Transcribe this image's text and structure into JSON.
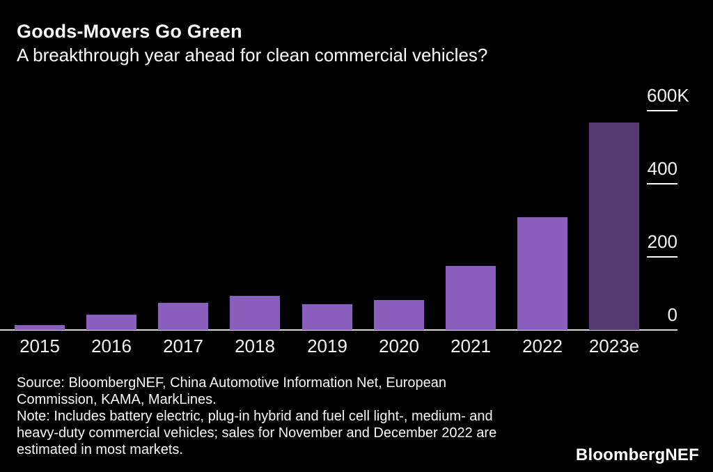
{
  "header": {
    "title": "Goods-Movers Go Green",
    "subtitle": "A breakthrough year ahead for clean commercial vehicles?"
  },
  "chart_data": {
    "type": "bar",
    "categories": [
      "2015",
      "2016",
      "2017",
      "2018",
      "2019",
      "2020",
      "2021",
      "2022",
      "2023e"
    ],
    "values": [
      14,
      42,
      74,
      94,
      71,
      82,
      175,
      308,
      568
    ],
    "values_unit": "thousand vehicles (K)",
    "title": "Goods-Movers Go Green",
    "subtitle": "A breakthrough year ahead for clean commercial vehicles?",
    "xlabel": "",
    "ylabel": "",
    "ylim": [
      0,
      600
    ],
    "yticks": [
      {
        "label": "600K",
        "value": 600,
        "align": "left"
      },
      {
        "label": "400",
        "value": 400,
        "align": "right"
      },
      {
        "label": "200",
        "value": 200,
        "align": "right"
      },
      {
        "label": "0",
        "value": 0,
        "align": "right"
      }
    ],
    "grid": false,
    "legend": false,
    "axis_side": "right",
    "bar_color": "#8A5FBE",
    "estimate_bar_color": "#563972",
    "estimate_index": 8,
    "background_color": "#000000",
    "text_color": "#FFFFFF"
  },
  "footer": {
    "lines": [
      "Source: BloombergNEF, China Automotive Information Net, European",
      "Commission, KAMA, MarkLines.",
      "Note: Includes battery electric, plug-in hybrid and fuel cell light-, medium- and",
      "heavy-duty commercial vehicles; sales for November and December 2022 are",
      "estimated in most markets."
    ],
    "logo": "BloombergNEF"
  }
}
